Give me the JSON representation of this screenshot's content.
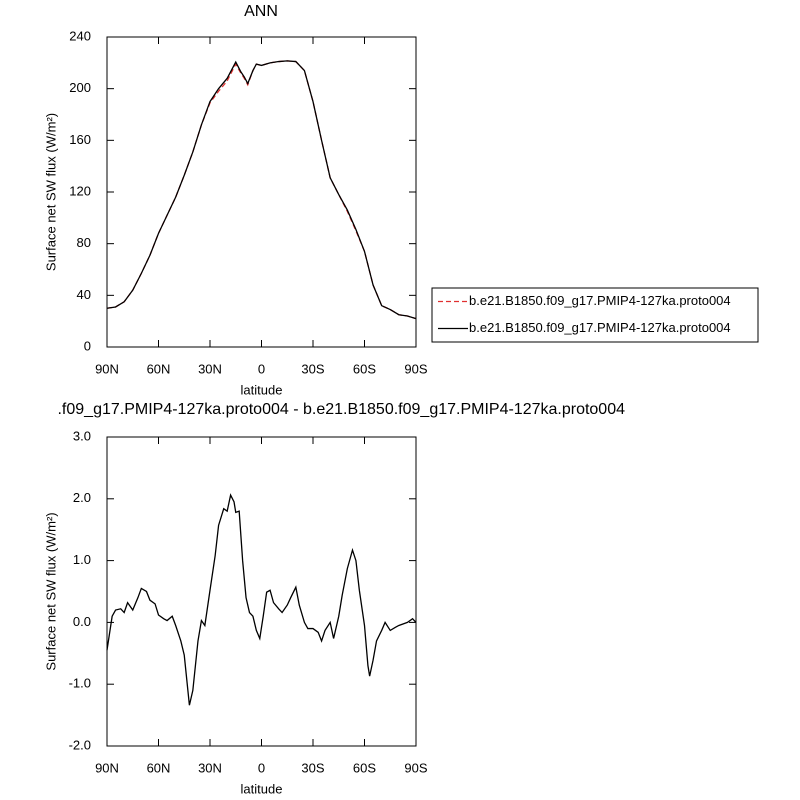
{
  "chart_data": [
    {
      "type": "line",
      "title": "ANN",
      "xlabel": "latitude",
      "ylabel": "Surface net SW flux (W/m²)",
      "x": [
        90,
        85,
        80,
        75,
        70,
        65,
        60,
        55,
        50,
        45,
        40,
        35,
        30,
        25,
        20,
        15,
        12,
        10,
        8,
        5,
        3,
        0,
        -5,
        -10,
        -15,
        -20,
        -25,
        -30,
        -35,
        -40,
        -45,
        -50,
        -55,
        -60,
        -65,
        -70,
        -75,
        -80,
        -85,
        -90
      ],
      "series": [
        {
          "name": "b.e21.B1850.f09_g17.PMIP4-127ka.proto004",
          "color": "#e03030",
          "line_style": "dashed",
          "values": [
            30,
            31,
            35,
            44,
            57,
            71,
            88,
            102,
            116,
            133,
            151,
            172,
            189,
            198,
            206,
            219,
            212,
            208,
            203,
            214,
            219,
            218,
            220,
            221,
            221.5,
            221,
            214,
            190,
            160,
            131,
            118,
            105,
            90,
            74,
            48,
            32,
            29,
            25,
            24,
            22
          ]
        },
        {
          "name": "b.e21.B1850.f09_g17.PMIP4-127ka.proto004",
          "color": "#000000",
          "line_style": "solid",
          "values": [
            30,
            31,
            35,
            44,
            57,
            71,
            88,
            102,
            116,
            133,
            151,
            172,
            190,
            200,
            208,
            220.6,
            213,
            209,
            204,
            214,
            219,
            218,
            220,
            221,
            221.5,
            221,
            214,
            190,
            160,
            131,
            118,
            106,
            91,
            74,
            48,
            32,
            29,
            25,
            24,
            22
          ]
        }
      ],
      "xlim": [
        90,
        -90
      ],
      "xticks": [
        {
          "value": 90,
          "label": "90N"
        },
        {
          "value": 60,
          "label": "60N"
        },
        {
          "value": 30,
          "label": "30N"
        },
        {
          "value": 0,
          "label": "0"
        },
        {
          "value": -30,
          "label": "30S"
        },
        {
          "value": -60,
          "label": "60S"
        },
        {
          "value": -90,
          "label": "90S"
        }
      ],
      "ylim": [
        0,
        240
      ],
      "yticks": [
        0,
        40,
        80,
        120,
        160,
        200,
        240
      ],
      "grid": false,
      "legend": "right"
    },
    {
      "type": "line",
      "title": ".f09_g17.PMIP4-127ka.proto004 - b.e21.B1850.f09_g17.PMIP4-127ka.proto004",
      "xlabel": "latitude",
      "ylabel": "Surface net SW flux (W/m²)",
      "x": [
        90,
        87,
        85,
        82,
        80,
        78,
        75,
        72,
        70,
        67,
        65,
        62,
        60,
        57,
        55,
        52,
        50,
        47,
        45,
        42,
        40,
        37,
        35,
        33,
        30,
        27,
        25,
        22,
        20,
        18,
        16,
        15,
        13,
        11,
        9,
        7,
        5,
        3,
        1,
        -1,
        -3,
        -5,
        -7,
        -10,
        -12,
        -15,
        -17,
        -20,
        -22,
        -25,
        -27,
        -30,
        -33,
        -35,
        -37,
        -40,
        -42,
        -45,
        -47,
        -50,
        -53,
        -55,
        -57,
        -60,
        -62,
        -63,
        -65,
        -67,
        -70,
        -72,
        -75,
        -78,
        -80,
        -85,
        -88,
        -90
      ],
      "series": [
        {
          "color": "#000000",
          "line_style": "solid",
          "values": [
            -0.45,
            0.1,
            0.2,
            0.22,
            0.16,
            0.32,
            0.2,
            0.4,
            0.55,
            0.5,
            0.36,
            0.3,
            0.12,
            0.06,
            0.03,
            0.1,
            -0.05,
            -0.3,
            -0.53,
            -1.34,
            -1.1,
            -0.3,
            0.03,
            -0.05,
            0.52,
            1.08,
            1.57,
            1.84,
            1.8,
            2.06,
            1.95,
            1.78,
            1.8,
            1.0,
            0.4,
            0.16,
            0.1,
            -0.13,
            -0.26,
            0.1,
            0.49,
            0.52,
            0.32,
            0.22,
            0.16,
            0.28,
            0.4,
            0.57,
            0.28,
            0.0,
            -0.1,
            -0.1,
            -0.16,
            -0.3,
            -0.13,
            0,
            -0.26,
            0.1,
            0.44,
            0.87,
            1.17,
            1.0,
            0.52,
            -0.05,
            -0.7,
            -0.87,
            -0.61,
            -0.3,
            -0.13,
            0,
            -0.13,
            -0.08,
            -0.05,
            0,
            0.06,
            0
          ]
        }
      ],
      "xlim": [
        90,
        -90
      ],
      "xticks": [
        {
          "value": 90,
          "label": "90N"
        },
        {
          "value": 60,
          "label": "60N"
        },
        {
          "value": 30,
          "label": "30N"
        },
        {
          "value": 0,
          "label": "0"
        },
        {
          "value": -30,
          "label": "30S"
        },
        {
          "value": -60,
          "label": "60S"
        },
        {
          "value": -90,
          "label": "90S"
        }
      ],
      "ylim": [
        -2,
        3
      ],
      "yticks": [
        {
          "value": -2,
          "label": "-2.0"
        },
        {
          "value": -1,
          "label": "-1.0"
        },
        {
          "value": 0,
          "label": "0.0"
        },
        {
          "value": 1,
          "label": "1.0"
        },
        {
          "value": 2,
          "label": "2.0"
        },
        {
          "value": 3,
          "label": "3.0"
        }
      ],
      "grid": false
    }
  ]
}
